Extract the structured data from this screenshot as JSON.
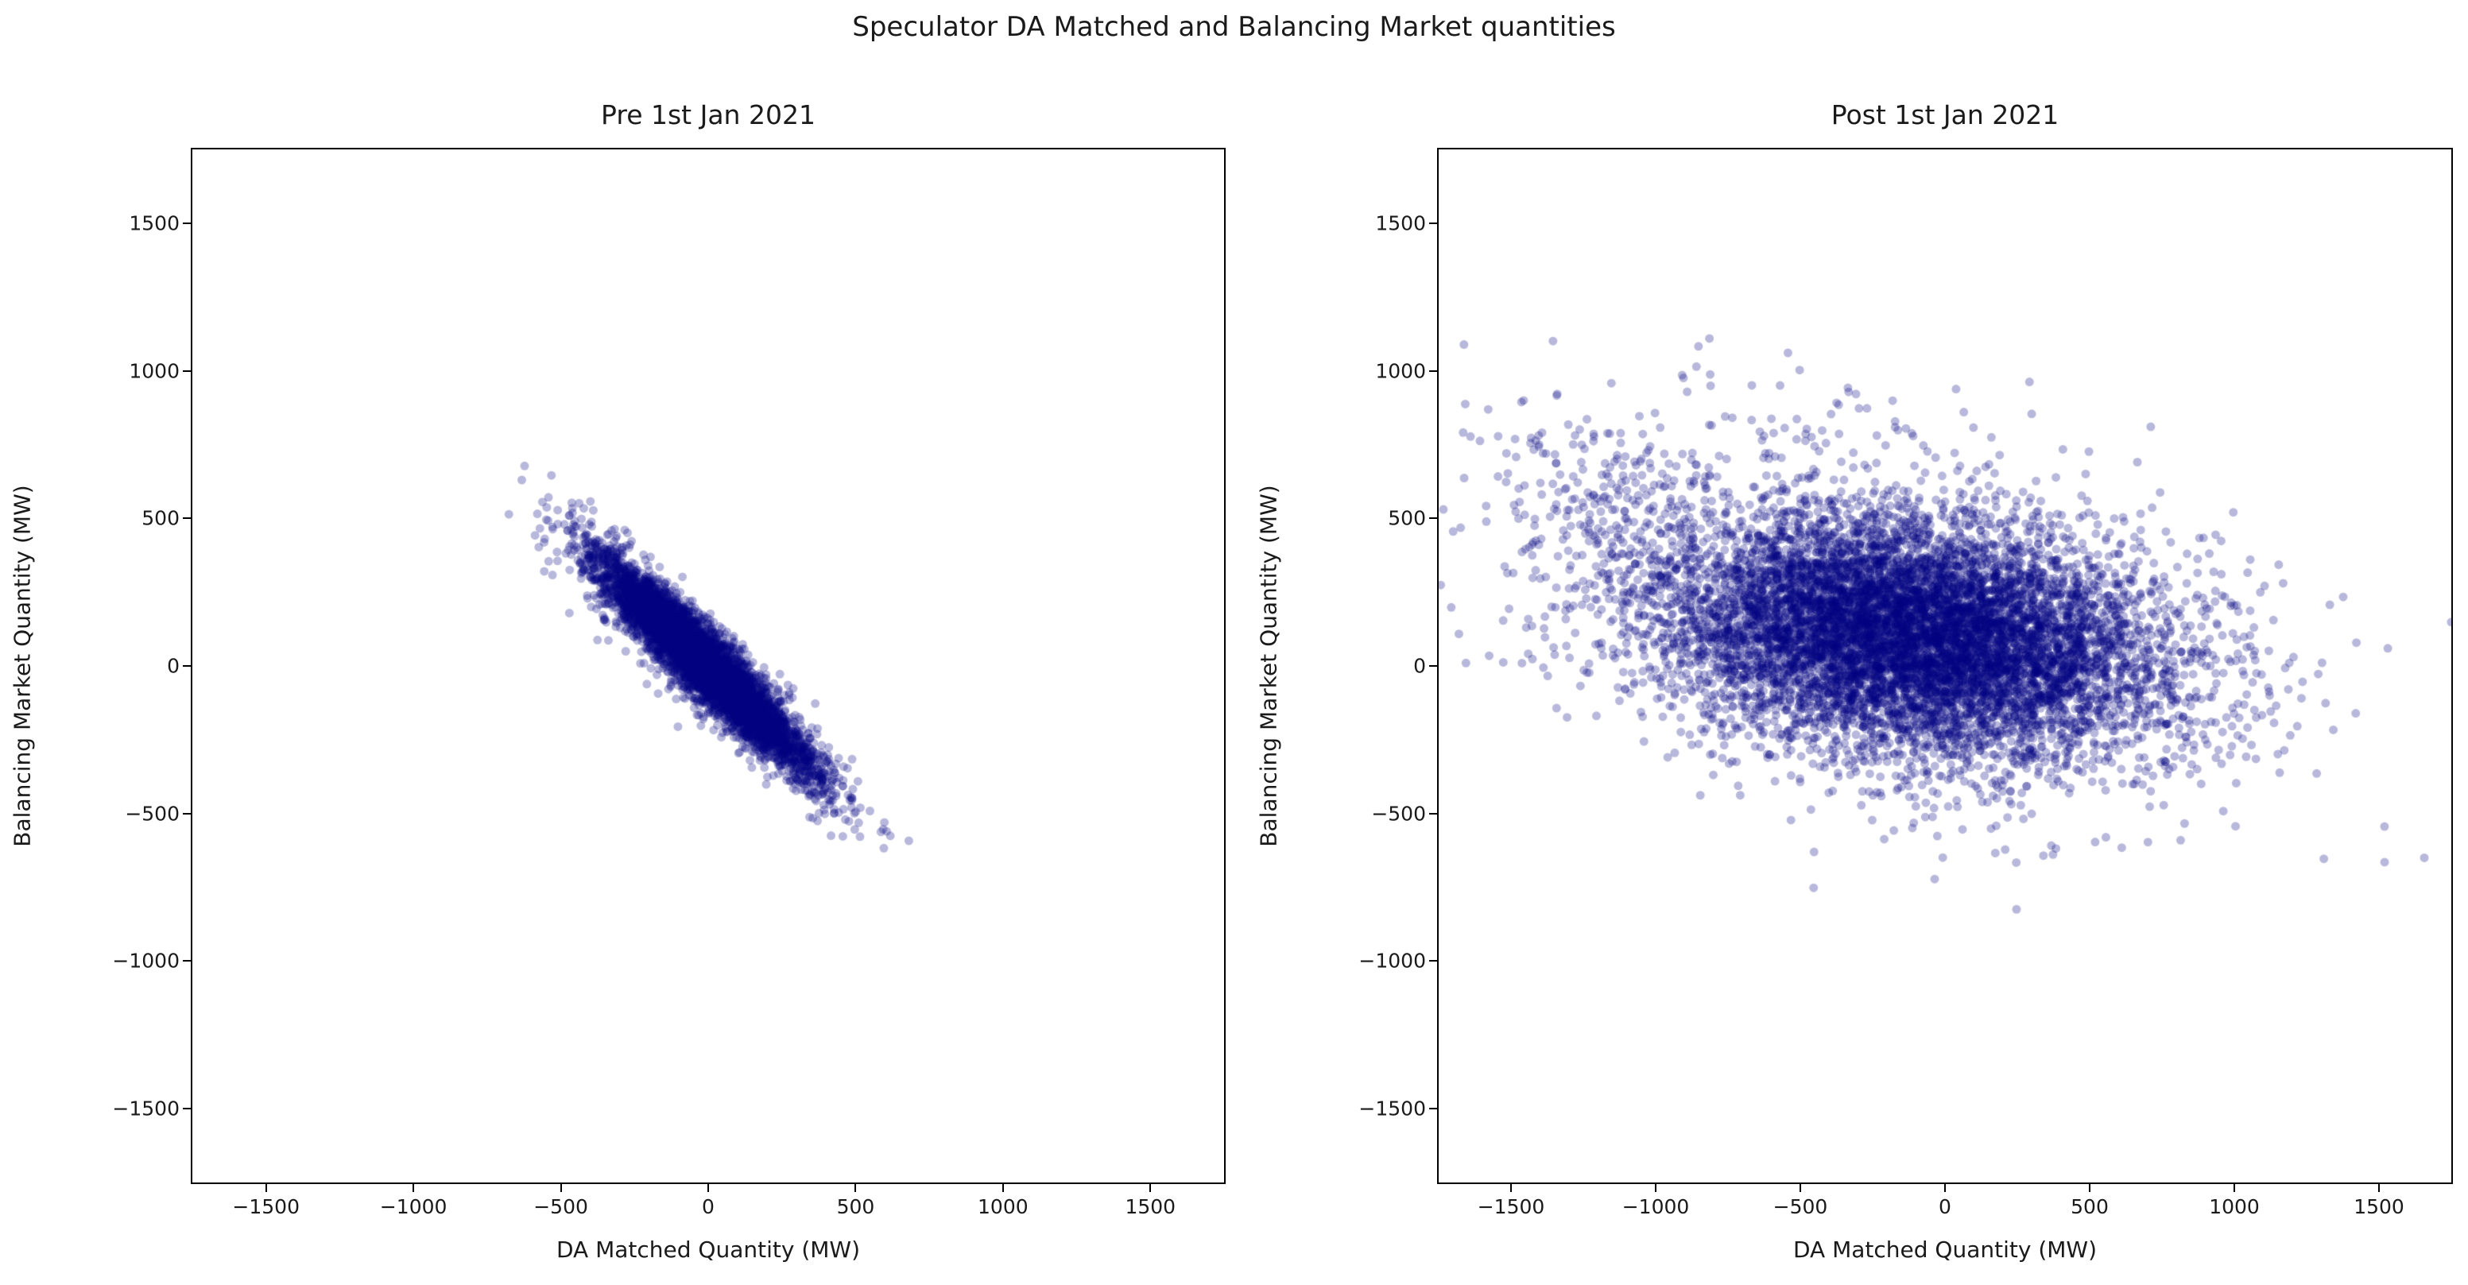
{
  "figure": {
    "suptitle": "Speculator DA Matched and Balancing Market quantities"
  },
  "chart_data": [
    {
      "type": "scatter",
      "title": "Pre 1st Jan 2021",
      "xlabel": "DA Matched Quantity (MW)",
      "ylabel": "Balancing Market Quantity (MW)",
      "xlim": [
        -1750,
        1750
      ],
      "ylim": [
        -1750,
        1750
      ],
      "xticks": [
        -1500,
        -1000,
        -500,
        0,
        500,
        1000,
        1500
      ],
      "yticks": [
        -1500,
        -1000,
        -500,
        0,
        500,
        1000,
        1500
      ],
      "grid": false,
      "marker": {
        "color": "#000080",
        "alpha": 0.28,
        "radius": 5.5
      },
      "summary": "Dense strongly negatively-correlated elongated cluster running from about (-550, 550) down to (500, -450); nearly solid navy core along y ≈ -x with light sparse halo.",
      "clusters": [
        {
          "n": 6000,
          "mean": [
            -15,
            10
          ],
          "sd": [
            180,
            180
          ],
          "corr": -0.94,
          "seed": 42
        },
        {
          "n": 400,
          "mean": [
            -15,
            10
          ],
          "sd": [
            215,
            210
          ],
          "corr": -0.88,
          "seed": 101
        }
      ]
    },
    {
      "type": "scatter",
      "title": "Post 1st Jan 2021",
      "xlabel": "DA Matched Quantity (MW)",
      "ylabel": "Balancing Market Quantity (MW)",
      "xlim": [
        -1750,
        1750
      ],
      "ylim": [
        -1750,
        1750
      ],
      "xticks": [
        -1500,
        -1000,
        -500,
        0,
        500,
        1000,
        1500
      ],
      "yticks": [
        -1500,
        -1000,
        -500,
        0,
        500,
        1000,
        1500
      ],
      "grid": false,
      "marker": {
        "color": "#000080",
        "alpha": 0.28,
        "radius": 5.5
      },
      "summary": "Broad weakly negatively-correlated cloud centered near (-100, 100) spanning roughly x in [-1650, 1500] and y in [-730, 1200], with sparse outliers to the upper-left and a thin negative-sloping tail to the lower-right.",
      "clusters": [
        {
          "n": 9000,
          "mean": [
            -110,
            110
          ],
          "sd": [
            430,
            200
          ],
          "corr": -0.22,
          "seed": 7
        },
        {
          "n": 750,
          "mean": [
            -150,
            100
          ],
          "sd": [
            650,
            300
          ],
          "corr": -0.35,
          "seed": 13
        },
        {
          "n": 220,
          "mean": [
            -1150,
            520
          ],
          "sd": [
            230,
            180
          ],
          "corr": -0.3,
          "seed": 23
        },
        {
          "n": 55,
          "mean": [
            -500,
            820
          ],
          "sd": [
            420,
            140
          ],
          "corr": 0.0,
          "seed": 31
        }
      ]
    }
  ]
}
